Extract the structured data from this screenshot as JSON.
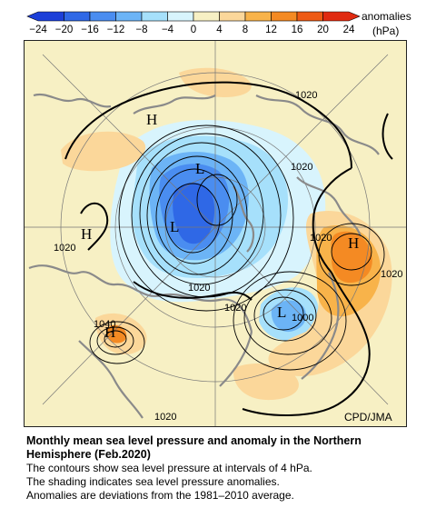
{
  "legend": {
    "ticks": [
      "−24",
      "−20",
      "−16",
      "−12",
      "−8",
      "−4",
      "0",
      "4",
      "8",
      "12",
      "16",
      "20",
      "24"
    ],
    "title_line1": "anomalies",
    "title_line2": "(hPa)",
    "colors": [
      "#1c3fd8",
      "#2f68e6",
      "#4a8df0",
      "#6cb4f6",
      "#a6e0fb",
      "#d8f4fd",
      "#f7f0c4",
      "#fbd79a",
      "#f8b34a",
      "#f48a23",
      "#ee5a14",
      "#e02a10"
    ]
  },
  "map": {
    "credit": "CPD/JMA",
    "highs": [
      "H",
      "H",
      "H",
      "H"
    ],
    "lows": [
      "L",
      "L",
      "L"
    ],
    "contour_labels": [
      "1020",
      "1020",
      "1020",
      "1020",
      "1020",
      "1020",
      "1020",
      "1020",
      "1000",
      "1040"
    ]
  },
  "caption": {
    "title": "Monthly mean sea level pressure and anomaly in the Northern Hemisphere (Feb.2020)",
    "line1": "The contours show sea level pressure at intervals of 4 hPa.",
    "line2": "The shading indicates sea level pressure anomalies.",
    "line3": "Anomalies are deviations from the 1981–2010 average."
  }
}
